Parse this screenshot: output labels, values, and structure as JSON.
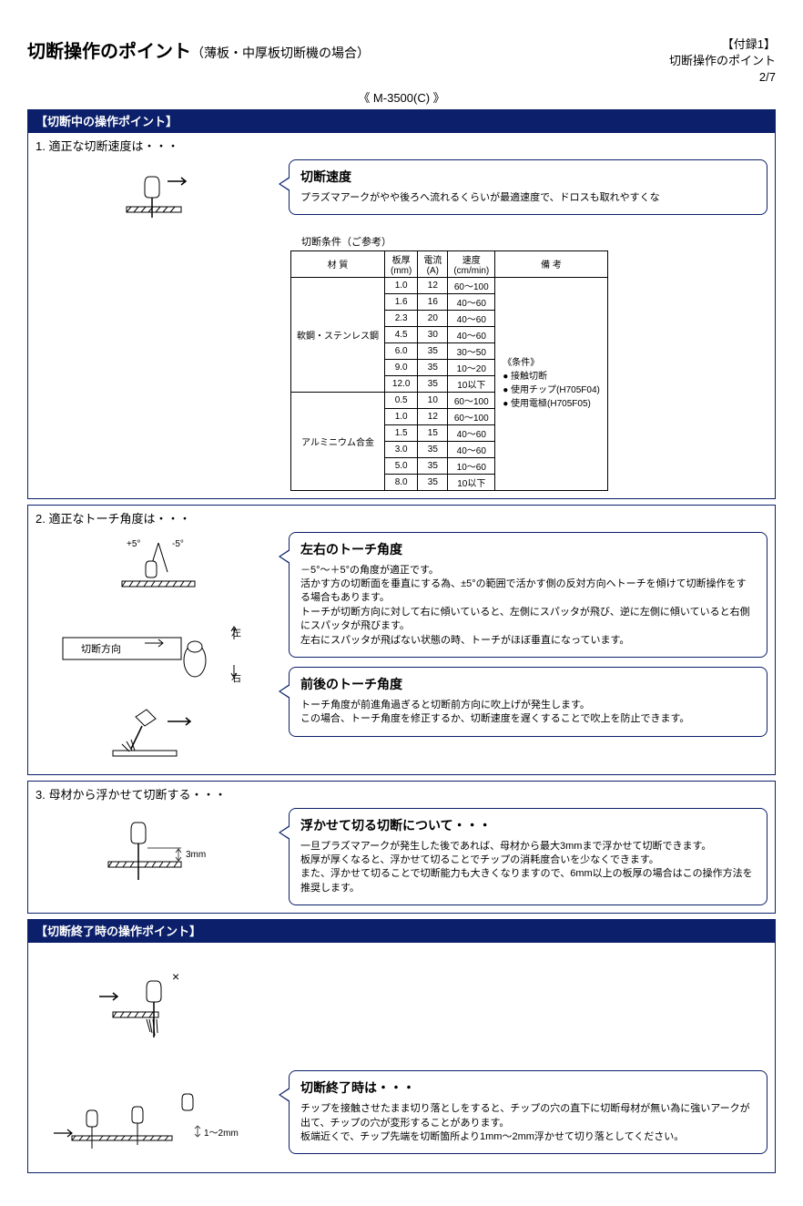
{
  "header": {
    "title_main": "切断操作のポイント",
    "title_sub": "（薄板・中厚板切断機の場合）",
    "appendix": "【付録1】",
    "appendix_sub": "切断操作のポイント",
    "page": "2/7",
    "model": "《 M-3500(C) 》"
  },
  "banner1": "【切断中の操作ポイント】",
  "q1": {
    "label": "1. 適正な切断速度は・・・",
    "callout_title": "切断速度",
    "callout_body": "プラズマアークがやや後ろへ流れるくらいが最適速度で、ドロスも取れやすくな",
    "table_caption": "切断条件（ご参考）",
    "table": {
      "columns": [
        "材 質",
        "板厚\n(mm)",
        "電流\n(A)",
        "速度\n(cm/min)",
        "備 考"
      ],
      "material1": "軟鋼・ステンレス鋼",
      "material2": "アルミニウム合金",
      "rows1": [
        [
          "1.0",
          "12",
          "60～100"
        ],
        [
          "1.6",
          "16",
          "40～60"
        ],
        [
          "2.3",
          "20",
          "40～60"
        ],
        [
          "4.5",
          "30",
          "40～60"
        ],
        [
          "6.0",
          "35",
          "30～50"
        ],
        [
          "9.0",
          "35",
          "10～20"
        ],
        [
          "12.0",
          "35",
          "10以下"
        ]
      ],
      "rows2": [
        [
          "0.5",
          "10",
          "60～100"
        ],
        [
          "1.0",
          "12",
          "60～100"
        ],
        [
          "1.5",
          "15",
          "40～60"
        ],
        [
          "3.0",
          "35",
          "40～60"
        ],
        [
          "5.0",
          "35",
          "10～60"
        ],
        [
          "8.0",
          "35",
          "10以下"
        ]
      ],
      "remarks": "《条件》\n● 接触切断\n● 使用チップ(H705F04)\n● 使用電極(H705F05)"
    }
  },
  "q2": {
    "label": "2. 適正なトーチ角度は・・・",
    "diagram_angle_left": "+5°",
    "diagram_angle_right": "-5°",
    "diagram_dir_label": "切断方向",
    "diagram_left_label": "左",
    "diagram_right_label": "右",
    "callout1_title": "左右のトーチ角度",
    "callout1_body": "－5°～＋5°の角度が適正です。\n活かす方の切断面を垂直にする為、±5°の範囲で活かす側の反対方向へトーチを傾けて切断操作をする場合もあります。\nトーチが切断方向に対して右に傾いていると、左側にスパッタが飛び、逆に左側に傾いていると右側にスパッタが飛びます。\n左右にスパッタが飛ばない状態の時、トーチがほぼ垂直になっています。",
    "callout2_title": "前後のトーチ角度",
    "callout2_body": "トーチ角度が前進角過ぎると切断前方向に吹上げが発生します。\nこの場合、トーチ角度を修正するか、切断速度を遅くすることで吹上を防止できます。"
  },
  "q3": {
    "label": "3. 母材から浮かせて切断する・・・",
    "diagram_gap": "3mm",
    "callout_title": "浮かせて切る切断について・・・",
    "callout_body": "一旦プラズマアークが発生した後であれば、母材から最大3mmまで浮かせて切断できます。\n板厚が厚くなると、浮かせて切ることでチップの消耗度合いを少なくできます。\nまた、浮かせて切ることで切断能力も大きくなりますので、6mm以上の板厚の場合はこの操作方法を推奨します。"
  },
  "banner2": "【切断終了時の操作ポイント】",
  "q4": {
    "diagram_x": "×",
    "diagram_gap": "1～2mm",
    "callout_title": "切断終了時は・・・",
    "callout_body": "チップを接触させたまま切り落としをすると、チップの穴の直下に切断母材が無い為に強いアークが出て、チップの穴が変形することがあります。\n板端近くで、チップ先端を切断箇所より1mm～2mm浮かせて切り落としてください。"
  },
  "colors": {
    "frame": "#0b1f6b",
    "background": "#ffffff",
    "text": "#000000"
  }
}
